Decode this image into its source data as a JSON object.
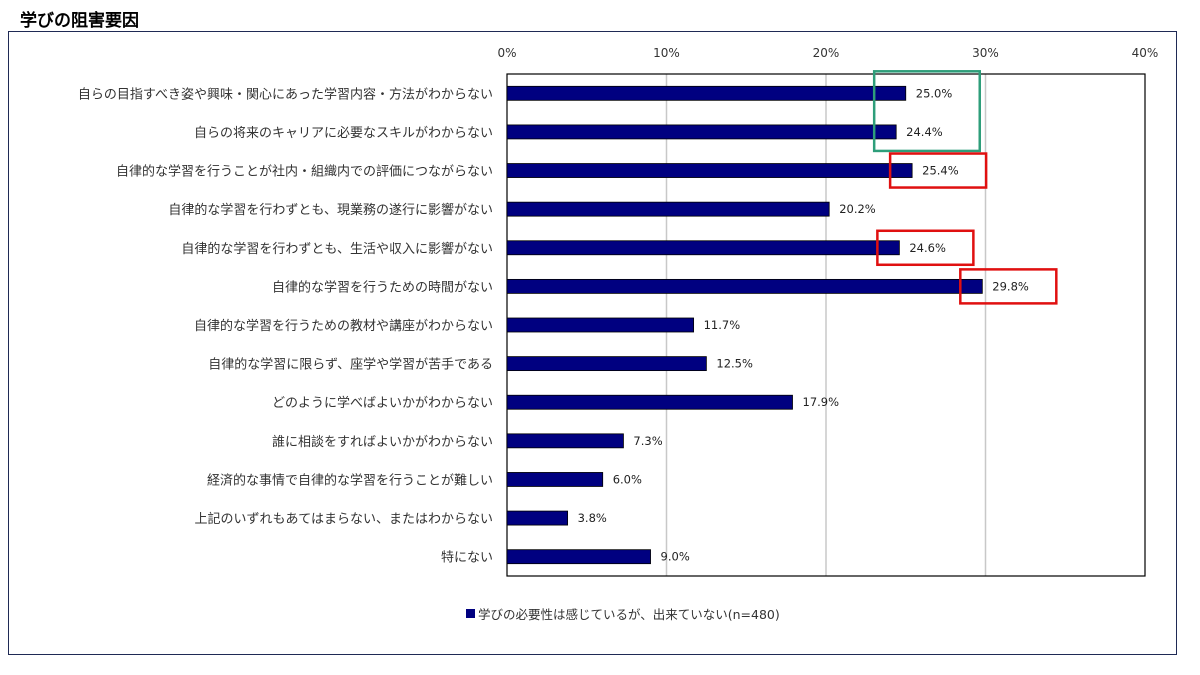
{
  "title": "学びの阻害要因",
  "chart_data": {
    "type": "bar",
    "orientation": "horizontal",
    "categories": [
      "自らの目指すべき姿や興味・関心にあった学習内容・方法がわからない",
      "自らの将来のキャリアに必要なスキルがわからない",
      "自律的な学習を行うことが社内・組織内での評価につながらない",
      "自律的な学習を行わずとも、現業務の遂行に影響がない",
      "自律的な学習を行わずとも、生活や収入に影響がない",
      "自律的な学習を行うための時間がない",
      "自律的な学習を行うための教材や講座がわからない",
      "自律的な学習に限らず、座学や学習が苦手である",
      "どのように学べばよいかがわからない",
      "誰に相談をすればよいかがわからない",
      "経済的な事情で自律的な学習を行うことが難しい",
      "上記のいずれもあてはまらない、またはわからない",
      "特にない"
    ],
    "series": [
      {
        "name": "学びの必要性は感じているが、出来ていない(n=480)",
        "values": [
          25.0,
          24.4,
          25.4,
          20.2,
          24.6,
          29.8,
          11.7,
          12.5,
          17.9,
          7.3,
          6.0,
          3.8,
          9.0
        ],
        "value_labels": [
          "25.0%",
          "24.4%",
          "25.4%",
          "20.2%",
          "24.6%",
          "29.8%",
          "11.7%",
          "12.5%",
          "17.9%",
          "7.3%",
          "6.0%",
          "3.8%",
          "9.0%"
        ],
        "color": "#000080"
      }
    ],
    "x_ticks": [
      "0%",
      "10%",
      "20%",
      "30%",
      "40%"
    ],
    "xlim": [
      0,
      40
    ],
    "grid": true,
    "legend_position": "bottom",
    "legend_label": "学びの必要性は感じているが、出来ていない(n=480)",
    "highlights": [
      {
        "categories": [
          0,
          1
        ],
        "color": "#2e9e7a"
      },
      {
        "categories": [
          2
        ],
        "color": "#e01010"
      },
      {
        "categories": [
          4
        ],
        "color": "#e01010"
      },
      {
        "categories": [
          5
        ],
        "color": "#e01010"
      }
    ]
  }
}
